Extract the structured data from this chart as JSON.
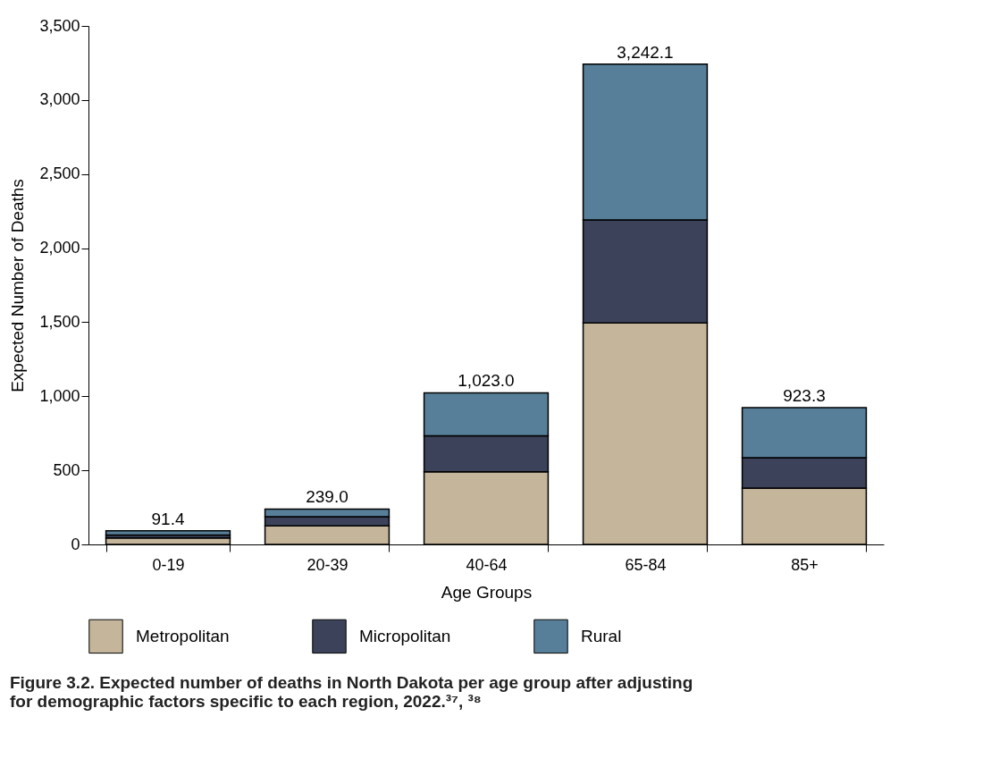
{
  "chart_data": {
    "type": "bar",
    "stacked": true,
    "title": "Figure 3.2. Expected number of deaths in North Dakota per age group after adjusting for demographic factors specific to each region, 2022.³⁷, ³⁸",
    "xlabel": "Age Groups",
    "ylabel": "Expected Number of Deaths",
    "categories": [
      "0-19",
      "20-39",
      "40-64",
      "65-84",
      "85+"
    ],
    "series": [
      {
        "name": "Metropolitan",
        "color": "#c4b59b",
        "values": [
          43,
          125,
          490,
          1495,
          380
        ]
      },
      {
        "name": "Micropolitan",
        "color": "#3b4259",
        "values": [
          20,
          62,
          243,
          695,
          205
        ]
      },
      {
        "name": "Rural",
        "color": "#577f99",
        "values": [
          28.4,
          52,
          290,
          1052.1,
          338.3
        ]
      }
    ],
    "totals": [
      "91.4",
      "239.0",
      "1,023.0",
      "3,242.1",
      "923.3"
    ],
    "ylim": [
      0,
      3500
    ],
    "yticks": [
      0,
      {
        "value": 500,
        "label": "500"
      },
      {
        "value": 1000,
        "label": "1,000"
      },
      {
        "value": 1500,
        "label": "1,500"
      },
      {
        "value": 2000,
        "label": "2,000"
      },
      {
        "value": 2500,
        "label": "2,500"
      },
      {
        "value": 3000,
        "label": "3,000"
      },
      {
        "value": 3500,
        "label": "3,500"
      }
    ],
    "grid": false,
    "legend": "bottom"
  }
}
